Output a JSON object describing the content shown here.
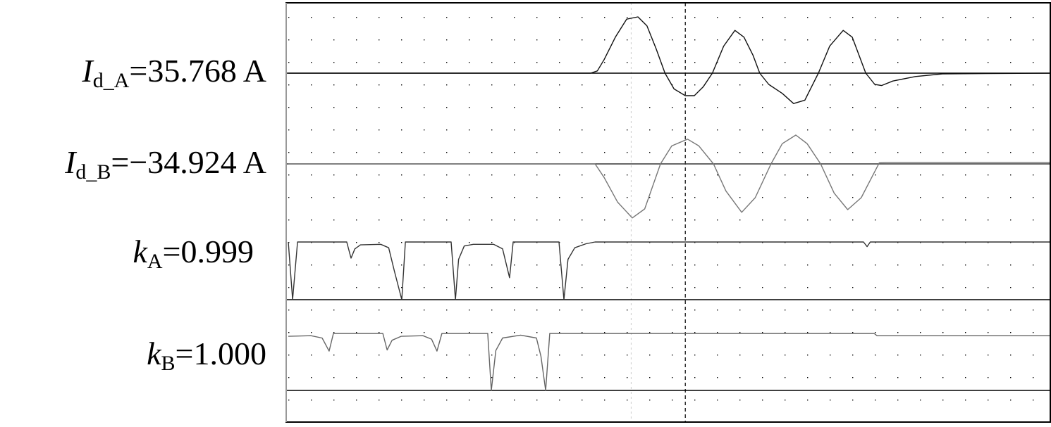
{
  "labels": [
    {
      "symbol": "I",
      "sub": "d_A",
      "value": "=35.768 A"
    },
    {
      "symbol": "I",
      "sub": "d_B",
      "value": "=−34.924 A"
    },
    {
      "symbol": "k",
      "sub": "A",
      "value": "=0.999"
    },
    {
      "symbol": "k",
      "sub": "B",
      "value": "=1.000"
    }
  ],
  "chart_data": {
    "type": "line",
    "title": "",
    "xlabel": "",
    "ylabel": "",
    "grid": "dotted",
    "x_unit": "grid divisions",
    "cursors": [
      {
        "style": "dashed",
        "color": "#000000",
        "x": 17.6
      },
      {
        "style": "dotted",
        "color": "#cccccc",
        "x": 15.2
      }
    ],
    "series": [
      {
        "trace": "Id_A",
        "color": "#111111",
        "y_unit": "grid divisions from baseline",
        "points": [
          [
            0,
            0
          ],
          [
            13.4,
            0
          ],
          [
            13.7,
            0.1
          ],
          [
            14.0,
            0.6
          ],
          [
            14.5,
            1.6
          ],
          [
            15.0,
            2.4
          ],
          [
            15.5,
            2.5
          ],
          [
            15.9,
            2.1
          ],
          [
            16.3,
            1.1
          ],
          [
            16.7,
            0
          ],
          [
            17.1,
            -0.7
          ],
          [
            17.6,
            -1.0
          ],
          [
            18.0,
            -1.0
          ],
          [
            18.4,
            -0.6
          ],
          [
            18.8,
            0
          ],
          [
            19.3,
            1.2
          ],
          [
            19.8,
            1.9
          ],
          [
            20.2,
            1.6
          ],
          [
            20.6,
            0.8
          ],
          [
            20.9,
            0
          ],
          [
            21.3,
            -0.5
          ],
          [
            21.9,
            -0.9
          ],
          [
            22.4,
            -1.35
          ],
          [
            22.9,
            -1.2
          ],
          [
            23.5,
            0
          ],
          [
            24.0,
            1.2
          ],
          [
            24.6,
            1.9
          ],
          [
            25.0,
            1.6
          ],
          [
            25.6,
            0
          ],
          [
            26.0,
            -0.5
          ],
          [
            26.3,
            -0.55
          ],
          [
            26.8,
            -0.35
          ],
          [
            27.8,
            -0.15
          ],
          [
            29.0,
            -0.03
          ],
          [
            33.8,
            0
          ]
        ]
      },
      {
        "trace": "Id_B",
        "color": "#777777",
        "y_unit": "grid divisions from baseline",
        "points": [
          [
            0,
            0
          ],
          [
            13.6,
            0
          ],
          [
            14.0,
            -0.6
          ],
          [
            14.6,
            -1.7
          ],
          [
            15.25,
            -2.4
          ],
          [
            15.8,
            -2.0
          ],
          [
            16.5,
            0
          ],
          [
            17.0,
            0.8
          ],
          [
            17.7,
            1.1
          ],
          [
            18.2,
            0.8
          ],
          [
            18.85,
            0
          ],
          [
            19.4,
            -1.2
          ],
          [
            20.1,
            -2.15
          ],
          [
            20.7,
            -1.5
          ],
          [
            21.4,
            0
          ],
          [
            21.9,
            0.9
          ],
          [
            22.5,
            1.28
          ],
          [
            23.0,
            0.9
          ],
          [
            23.6,
            0
          ],
          [
            24.2,
            -1.3
          ],
          [
            24.8,
            -2.03
          ],
          [
            25.4,
            -1.5
          ],
          [
            26.2,
            0.05
          ],
          [
            26.5,
            0.07
          ],
          [
            33.8,
            0.07
          ]
        ]
      },
      {
        "trace": "kA",
        "color": "#333333",
        "y_unit": "k",
        "points": [
          [
            0,
            1
          ],
          [
            0.19,
            0
          ],
          [
            0.41,
            1
          ],
          [
            2.59,
            1
          ],
          [
            2.78,
            0.72
          ],
          [
            2.95,
            0.88
          ],
          [
            3.2,
            0.95
          ],
          [
            4.1,
            0.96
          ],
          [
            4.45,
            0.9
          ],
          [
            4.7,
            0.5
          ],
          [
            5.03,
            0
          ],
          [
            5.19,
            1
          ],
          [
            7.22,
            1
          ],
          [
            7.41,
            0
          ],
          [
            7.55,
            0.7
          ],
          [
            7.8,
            0.93
          ],
          [
            8.2,
            0.96
          ],
          [
            9.1,
            0.96
          ],
          [
            9.5,
            0.88
          ],
          [
            9.81,
            0.38
          ],
          [
            9.97,
            1
          ],
          [
            12.0,
            1
          ],
          [
            12.22,
            0
          ],
          [
            12.4,
            0.7
          ],
          [
            12.7,
            0.9
          ],
          [
            13.2,
            0.97
          ],
          [
            13.6,
            1
          ],
          [
            25.5,
            1
          ],
          [
            25.66,
            0.92
          ],
          [
            25.8,
            1
          ],
          [
            33.8,
            1
          ]
        ]
      },
      {
        "trace": "kB",
        "color": "#666666",
        "y_unit": "k",
        "points": [
          [
            0,
            0.95
          ],
          [
            1.0,
            0.96
          ],
          [
            1.5,
            0.92
          ],
          [
            1.81,
            0.69
          ],
          [
            2.0,
            1
          ],
          [
            4.19,
            1
          ],
          [
            4.38,
            0.71
          ],
          [
            4.6,
            0.88
          ],
          [
            5.0,
            0.95
          ],
          [
            5.97,
            0.96
          ],
          [
            6.35,
            0.9
          ],
          [
            6.59,
            0.69
          ],
          [
            6.81,
            1
          ],
          [
            8.84,
            1
          ],
          [
            9.0,
            0
          ],
          [
            9.2,
            0.7
          ],
          [
            9.5,
            0.92
          ],
          [
            10.3,
            0.97
          ],
          [
            11.0,
            0.92
          ],
          [
            11.2,
            0.6
          ],
          [
            11.41,
            0
          ],
          [
            11.59,
            1
          ],
          [
            25.97,
            1
          ],
          [
            26.1,
            0.96
          ],
          [
            33.8,
            0.96
          ]
        ]
      }
    ]
  }
}
